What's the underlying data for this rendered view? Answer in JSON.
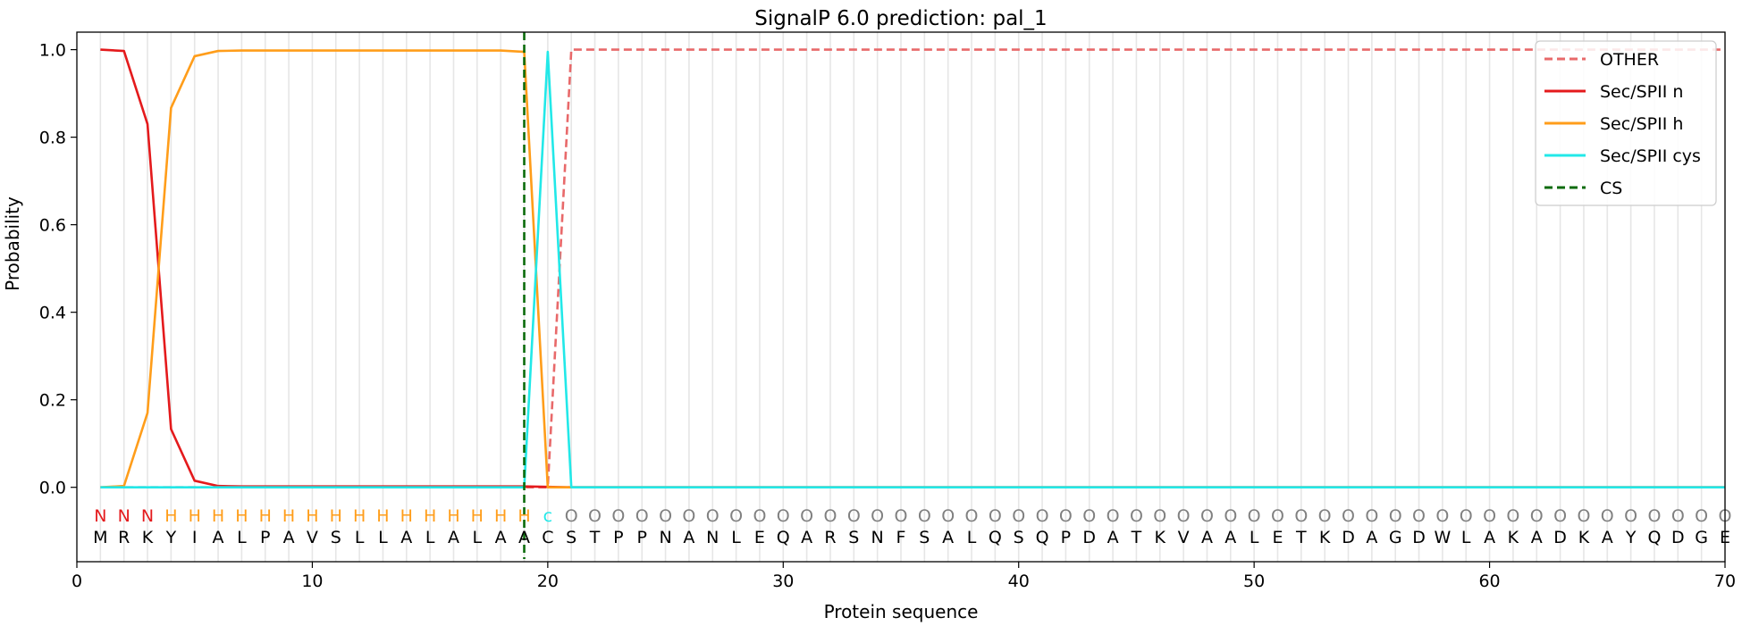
{
  "chart_data": {
    "type": "line",
    "title": "SignalP 6.0 prediction: pal_1",
    "xlabel": "Protein sequence",
    "ylabel": "Probability",
    "xlim": [
      0,
      70
    ],
    "ylim": [
      -0.17,
      1.04
    ],
    "xticks": [
      0,
      10,
      20,
      30,
      40,
      50,
      60,
      70
    ],
    "yticks": [
      0.0,
      0.2,
      0.4,
      0.6,
      0.8,
      1.0
    ],
    "xtick_labels": [
      "0",
      "10",
      "20",
      "30",
      "40",
      "50",
      "60",
      "70"
    ],
    "ytick_labels": [
      "0.0",
      "0.2",
      "0.4",
      "0.6",
      "0.8",
      "1.0"
    ],
    "grid": "vertical lines at each residue",
    "legend_position": "top-right",
    "x": [
      1,
      2,
      3,
      4,
      5,
      6,
      7,
      8,
      9,
      10,
      11,
      12,
      13,
      14,
      15,
      16,
      17,
      18,
      19,
      20,
      21,
      22,
      23,
      24,
      25,
      26,
      27,
      28,
      29,
      30,
      31,
      32,
      33,
      34,
      35,
      36,
      37,
      38,
      39,
      40,
      41,
      42,
      43,
      44,
      45,
      46,
      47,
      48,
      49,
      50,
      51,
      52,
      53,
      54,
      55,
      56,
      57,
      58,
      59,
      60,
      61,
      62,
      63,
      64,
      65,
      66,
      67,
      68,
      69,
      70
    ],
    "series": [
      {
        "name": "OTHER",
        "color": "#e8696a",
        "style": "dashed",
        "values": [
          0,
          0,
          0,
          0,
          0,
          0,
          0,
          0,
          0,
          0,
          0,
          0,
          0,
          0,
          0,
          0,
          0,
          0,
          0,
          0,
          1,
          1,
          1,
          1,
          1,
          1,
          1,
          1,
          1,
          1,
          1,
          1,
          1,
          1,
          1,
          1,
          1,
          1,
          1,
          1,
          1,
          1,
          1,
          1,
          1,
          1,
          1,
          1,
          1,
          1,
          1,
          1,
          1,
          1,
          1,
          1,
          1,
          1,
          1,
          1,
          1,
          1,
          1,
          1,
          1,
          1,
          1,
          1,
          1,
          1
        ]
      },
      {
        "name": "Sec/SPII n",
        "color": "#e41a1c",
        "style": "solid",
        "values": [
          1.0,
          0.997,
          0.83,
          0.133,
          0.015,
          0.003,
          0.002,
          0.002,
          0.002,
          0.002,
          0.002,
          0.002,
          0.002,
          0.002,
          0.002,
          0.002,
          0.002,
          0.002,
          0.002,
          0.001,
          0,
          0,
          0,
          0,
          0,
          0,
          0,
          0,
          0,
          0,
          0,
          0,
          0,
          0,
          0,
          0,
          0,
          0,
          0,
          0,
          0,
          0,
          0,
          0,
          0,
          0,
          0,
          0,
          0,
          0,
          0,
          0,
          0,
          0,
          0,
          0,
          0,
          0,
          0,
          0,
          0,
          0,
          0,
          0,
          0,
          0,
          0,
          0,
          0,
          0
        ]
      },
      {
        "name": "Sec/SPII h",
        "color": "#ff9d1a",
        "style": "solid",
        "values": [
          0,
          0.003,
          0.17,
          0.867,
          0.985,
          0.997,
          0.998,
          0.998,
          0.998,
          0.998,
          0.998,
          0.998,
          0.998,
          0.998,
          0.998,
          0.998,
          0.998,
          0.998,
          0.995,
          0,
          0,
          0,
          0,
          0,
          0,
          0,
          0,
          0,
          0,
          0,
          0,
          0,
          0,
          0,
          0,
          0,
          0,
          0,
          0,
          0,
          0,
          0,
          0,
          0,
          0,
          0,
          0,
          0,
          0,
          0,
          0,
          0,
          0,
          0,
          0,
          0,
          0,
          0,
          0,
          0,
          0,
          0,
          0,
          0,
          0,
          0,
          0,
          0,
          0,
          0
        ]
      },
      {
        "name": "Sec/SPII cys",
        "color": "#22e8e8",
        "style": "solid",
        "values": [
          0,
          0,
          0,
          0,
          0,
          0,
          0,
          0,
          0,
          0,
          0,
          0,
          0,
          0,
          0,
          0,
          0,
          0,
          0,
          0.995,
          0,
          0,
          0,
          0,
          0,
          0,
          0,
          0,
          0,
          0,
          0,
          0,
          0,
          0,
          0,
          0,
          0,
          0,
          0,
          0,
          0,
          0,
          0,
          0,
          0,
          0,
          0,
          0,
          0,
          0,
          0,
          0,
          0,
          0,
          0,
          0,
          0,
          0,
          0,
          0,
          0,
          0,
          0,
          0,
          0,
          0,
          0,
          0,
          0,
          0
        ]
      }
    ],
    "cs_marker": {
      "name": "CS",
      "x": 19,
      "color": "#0b6b0b",
      "style": "dashed"
    },
    "sequence": [
      "M",
      "R",
      "K",
      "Y",
      "I",
      "A",
      "L",
      "P",
      "A",
      "V",
      "S",
      "L",
      "L",
      "A",
      "L",
      "A",
      "L",
      "A",
      "A",
      "C",
      "S",
      "T",
      "P",
      "P",
      "N",
      "A",
      "N",
      "L",
      "E",
      "Q",
      "A",
      "R",
      "S",
      "N",
      "F",
      "S",
      "A",
      "L",
      "Q",
      "S",
      "Q",
      "P",
      "D",
      "A",
      "T",
      "K",
      "V",
      "A",
      "A",
      "L",
      "E",
      "T",
      "K",
      "D",
      "A",
      "G",
      "D",
      "W",
      "L",
      "A",
      "K",
      "A",
      "D",
      "K",
      "A",
      "Y",
      "Q",
      "D",
      "G",
      "E"
    ],
    "region_labels": [
      "N",
      "N",
      "N",
      "H",
      "H",
      "H",
      "H",
      "H",
      "H",
      "H",
      "H",
      "H",
      "H",
      "H",
      "H",
      "H",
      "H",
      "H",
      "H",
      "c",
      "O",
      "O",
      "O",
      "O",
      "O",
      "O",
      "O",
      "O",
      "O",
      "O",
      "O",
      "O",
      "O",
      "O",
      "O",
      "O",
      "O",
      "O",
      "O",
      "O",
      "O",
      "O",
      "O",
      "O",
      "O",
      "O",
      "O",
      "O",
      "O",
      "O",
      "O",
      "O",
      "O",
      "O",
      "O",
      "O",
      "O",
      "O",
      "O",
      "O",
      "O",
      "O",
      "O",
      "O",
      "O",
      "O",
      "O",
      "O",
      "O",
      "O"
    ],
    "region_colors": {
      "N": "#e41a1c",
      "H": "#ff9d1a",
      "c": "#22e8e8",
      "O": "#808080"
    }
  }
}
